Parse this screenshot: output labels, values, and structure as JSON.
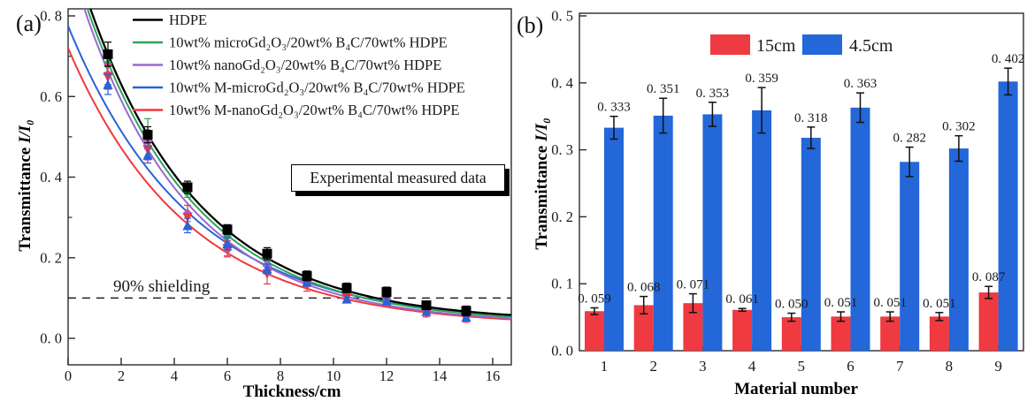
{
  "figure": {
    "panel_a_tag": "(a)",
    "panel_b_tag": "(b)"
  },
  "chart_data": [
    {
      "type": "line",
      "panel": "a",
      "xlabel": "Thickness/cm",
      "ylabel_main": "Transmittance ",
      "ylabel_math": "I/I₀",
      "xlim": [
        0,
        16.7
      ],
      "ylim": [
        -0.066,
        0.8175
      ],
      "grid": false,
      "legend_position": "top-left-inside",
      "x_ticks": {
        "values": [
          0,
          2,
          4,
          6,
          8,
          10,
          12,
          14,
          16
        ],
        "labels": [
          "0",
          "2",
          "4",
          "6",
          "8",
          "10",
          "12",
          "14",
          "16"
        ]
      },
      "y_ticks": {
        "values": [
          0.0,
          0.2,
          0.4,
          0.6,
          0.8
        ],
        "labels": [
          "0. 0",
          "0. 2",
          "0. 4",
          "0. 6",
          "0. 8"
        ],
        "minor": [
          0.1,
          0.3,
          0.5,
          0.7
        ]
      },
      "annotations": {
        "box_label": "Experimental measured data",
        "shielding_label": "90% shielding",
        "shielding_line_y": 0.1
      },
      "sample_x": [
        1.5,
        3,
        4.5,
        6,
        7.5,
        9,
        10.5,
        12,
        13.5,
        15
      ],
      "series": [
        {
          "name": "HDPE",
          "color": "#000000",
          "marker": "square",
          "values": [
            0.705,
            0.505,
            0.375,
            0.27,
            0.21,
            0.155,
            0.125,
            0.115,
            0.082,
            0.068
          ],
          "errors": [
            0.03,
            0.02,
            0.015,
            0.012,
            0.015,
            0.012,
            0.012,
            0.012,
            0.01,
            0.012
          ],
          "fit": {
            "A": 0.95,
            "t": 4.2,
            "y0": 0.04
          }
        },
        {
          "name": "10wt% microGd₂O₃/20wt% B₄C/70wt% HDPE",
          "color": "#2fa35c",
          "marker": "circle",
          "values": [
            0.68,
            0.51,
            0.365,
            0.255,
            0.195,
            0.15,
            0.113,
            0.103,
            0.074,
            0.06
          ],
          "errors": [
            0.02,
            0.035,
            0.015,
            0.012,
            0.01,
            0.01,
            0.008,
            0.008,
            0.008,
            0.008
          ],
          "fit": {
            "A": 0.93,
            "t": 4.15,
            "y0": 0.037
          }
        },
        {
          "name": "10wt% nanoGd₂O₃/20wt% B₄C/70wt% HDPE",
          "color": "#9a68d2",
          "marker": "diamond",
          "values": [
            0.655,
            0.49,
            0.31,
            0.22,
            0.18,
            0.138,
            0.108,
            0.098,
            0.07,
            0.056
          ],
          "errors": [
            0.025,
            0.02,
            0.02,
            0.015,
            0.012,
            0.01,
            0.008,
            0.008,
            0.008,
            0.008
          ],
          "fit": {
            "A": 0.91,
            "t": 4.05,
            "y0": 0.035
          }
        },
        {
          "name": "10wt% M-microGd₂O₃/20wt% B₄C/70wt% HDPE",
          "color": "#2a62d8",
          "marker": "triangle-up",
          "values": [
            0.63,
            0.455,
            0.28,
            0.235,
            0.172,
            0.14,
            0.098,
            0.093,
            0.067,
            0.053
          ],
          "errors": [
            0.025,
            0.02,
            0.018,
            0.015,
            0.012,
            0.01,
            0.008,
            0.008,
            0.008,
            0.008
          ],
          "fit": {
            "A": 0.74,
            "t": 4.6,
            "y0": 0.035
          }
        },
        {
          "name": "10wt% M-nanoGd₂O₃/20wt% B₄C/70wt% HDPE",
          "color": "#f2383e",
          "marker": "triangle-down",
          "values": [
            0.648,
            0.468,
            0.3,
            0.222,
            0.16,
            0.132,
            0.1,
            0.1,
            0.063,
            0.05
          ],
          "errors": [
            0.03,
            0.025,
            0.03,
            0.02,
            0.025,
            0.015,
            0.012,
            0.012,
            0.01,
            0.01
          ],
          "fit": {
            "A": 0.69,
            "t": 4.5,
            "y0": 0.03
          }
        }
      ]
    },
    {
      "type": "bar",
      "panel": "b",
      "xlabel": "Material number",
      "ylabel_main": "Transmittance ",
      "ylabel_math": "I/I₀",
      "ylim": [
        0,
        0.5
      ],
      "grid": false,
      "legend_position": "top-center-inside",
      "categories": [
        "1",
        "2",
        "3",
        "4",
        "5",
        "6",
        "7",
        "8",
        "9"
      ],
      "y_ticks": {
        "values": [
          0.0,
          0.1,
          0.2,
          0.3,
          0.4,
          0.5
        ],
        "labels": [
          "0. 0",
          "0. 1",
          "0. 2",
          "0. 3",
          "0. 4",
          "0. 5"
        ]
      },
      "series": [
        {
          "name": "15cm",
          "color": "#ee3a40",
          "values": [
            0.059,
            0.068,
            0.071,
            0.061,
            0.05,
            0.051,
            0.051,
            0.051,
            0.087
          ],
          "errors": [
            0.005,
            0.013,
            0.014,
            0.002,
            0.006,
            0.007,
            0.007,
            0.006,
            0.009
          ],
          "labels": [
            "0. 059",
            "0. 068",
            "0. 071",
            "0. 061",
            "0. 050",
            "0. 051",
            "0. 051",
            "0. 051",
            "0. 087"
          ]
        },
        {
          "name": "4.5cm",
          "color": "#2367d9",
          "values": [
            0.333,
            0.351,
            0.353,
            0.359,
            0.318,
            0.363,
            0.282,
            0.302,
            0.402
          ],
          "errors": [
            0.017,
            0.026,
            0.018,
            0.034,
            0.016,
            0.022,
            0.022,
            0.019,
            0.02
          ],
          "labels": [
            "0. 333",
            "0. 351",
            "0. 353",
            "0. 359",
            "0. 318",
            "0. 363",
            "0. 282",
            "0. 302",
            "0. 402"
          ]
        }
      ]
    }
  ]
}
